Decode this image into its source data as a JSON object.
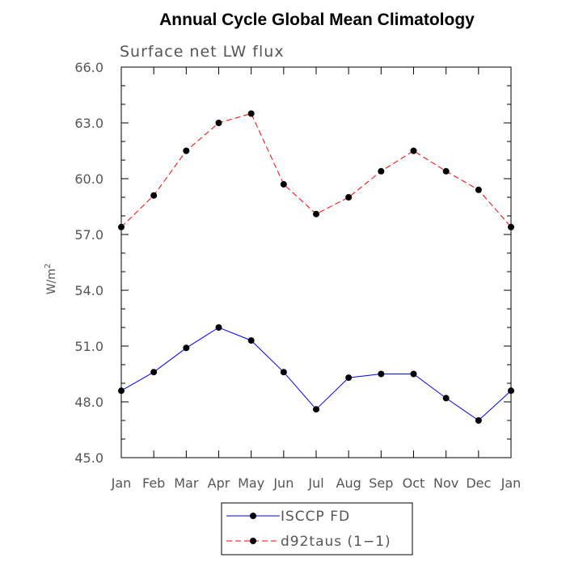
{
  "chart_data": {
    "type": "line",
    "title": "Annual Cycle Global Mean Climatology",
    "subtitle": "Surface net LW flux",
    "ylabel": "W/m",
    "ylabel_sup": "2",
    "xlabel": "",
    "categories": [
      "Jan",
      "Feb",
      "Mar",
      "Apr",
      "May",
      "Jun",
      "Jul",
      "Aug",
      "Sep",
      "Oct",
      "Nov",
      "Dec",
      "Jan"
    ],
    "ylim": [
      45.0,
      66.0
    ],
    "yticks": [
      "45.0",
      "48.0",
      "51.0",
      "54.0",
      "57.0",
      "60.0",
      "63.0",
      "66.0"
    ],
    "grid": false,
    "legend_position": "bottom",
    "series": [
      {
        "name": "ISCCP FD",
        "color": "#0000ff",
        "dash": "solid",
        "marker": "filled-circle",
        "values": [
          48.6,
          49.6,
          50.9,
          52.0,
          51.3,
          49.6,
          47.6,
          49.3,
          49.5,
          49.5,
          48.2,
          47.0,
          48.6
        ]
      },
      {
        "name": "d92taus (1−1)",
        "color": "#ff0000",
        "dash": "dashed",
        "marker": "filled-circle",
        "values": [
          57.4,
          59.1,
          61.5,
          63.0,
          63.5,
          59.7,
          58.1,
          59.0,
          60.4,
          61.5,
          60.4,
          59.4,
          57.4
        ]
      }
    ]
  }
}
